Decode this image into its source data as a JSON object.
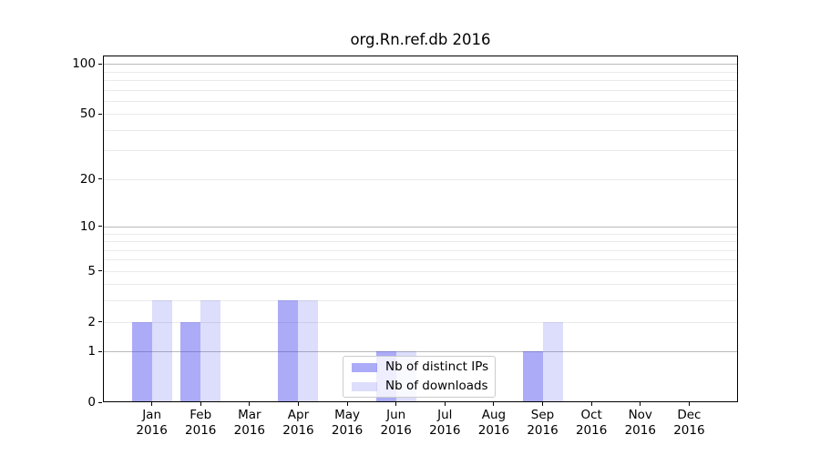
{
  "title": "org.Rn.ref.db 2016",
  "chart_data": {
    "type": "bar",
    "title": "org.Rn.ref.db 2016",
    "xlabel": "",
    "ylabel": "",
    "categories": [
      "Jan",
      "Feb",
      "Mar",
      "Apr",
      "May",
      "Jun",
      "Jul",
      "Aug",
      "Sep",
      "Oct",
      "Nov",
      "Dec"
    ],
    "year_label": "2016",
    "series": [
      {
        "name": "Nb of distinct IPs",
        "color": "rgba(68,68,238,0.45)",
        "values": [
          2,
          2,
          0,
          3,
          0,
          1,
          0,
          0,
          1,
          0,
          0,
          0
        ]
      },
      {
        "name": "Nb of downloads",
        "color": "rgba(68,68,238,0.18)",
        "values": [
          3,
          3,
          0,
          3,
          0,
          1,
          0,
          0,
          2,
          0,
          0,
          0
        ]
      }
    ],
    "y_axis": {
      "scale": "log1p",
      "ylim": [
        0,
        110
      ],
      "tick_labels": [
        "100",
        "50",
        "20",
        "10",
        "5",
        "2",
        "1",
        "0"
      ],
      "tick_values": [
        100,
        50,
        20,
        10,
        5,
        2,
        1,
        0
      ],
      "major_grid_values": [
        100,
        10,
        1
      ],
      "minor_grid_values": [
        90,
        80,
        70,
        60,
        50,
        40,
        30,
        20,
        9,
        8,
        7,
        6,
        5,
        4,
        3,
        2
      ]
    },
    "legend": {
      "position": "lower-center",
      "entries": [
        "Nb of distinct IPs",
        "Nb of downloads"
      ]
    },
    "grid": true,
    "colors": {
      "major_grid": "#b9b9b9",
      "minor_grid": "#eaeaea",
      "axis": "#000000",
      "background": "#ffffff"
    }
  }
}
